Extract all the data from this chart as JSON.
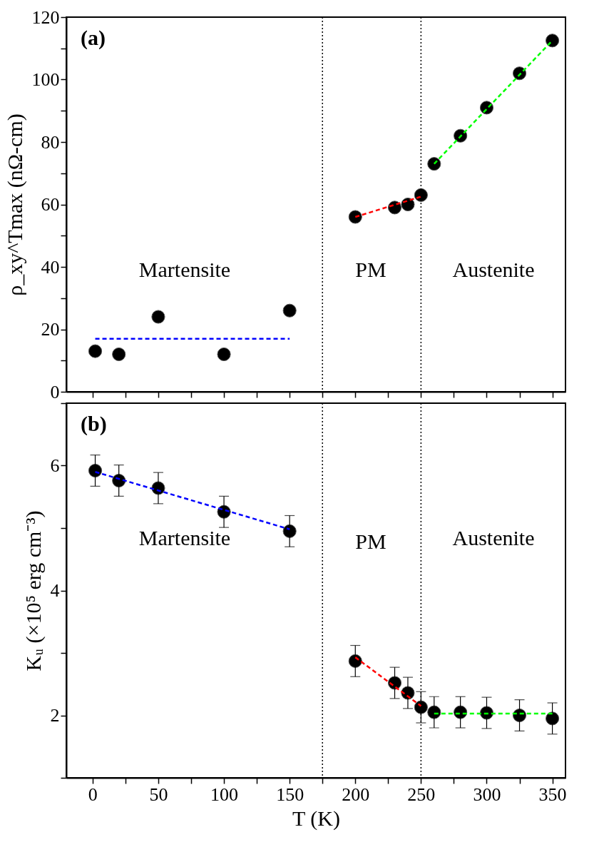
{
  "chart_data": [
    {
      "type": "scatter",
      "ylabel": "ρ_xy^Tmax (nΩ-cm)",
      "xlim": [
        -20,
        360
      ],
      "ylim": [
        0,
        120
      ],
      "xticks": [
        0,
        {
          "value": 25,
          "label": null
        },
        50,
        {
          "value": 75,
          "label": null
        },
        100,
        {
          "value": 125,
          "label": null
        },
        150,
        {
          "value": 175,
          "label": null
        },
        200,
        {
          "value": 225,
          "label": null
        },
        250,
        {
          "value": 275,
          "label": null
        },
        300,
        {
          "value": 325,
          "label": null
        },
        350
      ],
      "yticks": [
        0,
        {
          "value": 10,
          "label": null
        },
        20,
        {
          "value": 30,
          "label": null
        },
        40,
        {
          "value": 50,
          "label": null
        },
        60,
        {
          "value": 70,
          "label": null
        },
        80,
        {
          "value": 90,
          "label": null
        },
        100,
        {
          "value": 110,
          "label": null
        },
        120
      ],
      "tick_labels": "y",
      "line_style": "dashed",
      "annotations": [
        "(a)",
        "Martensite",
        "PM",
        "Austenite"
      ],
      "ref_lines": [
        {
          "axis": "x",
          "value": 175,
          "color": "#000000",
          "line_style": "dotted"
        },
        {
          "axis": "x",
          "value": 250,
          "color": "#000000",
          "line_style": "dotted"
        }
      ],
      "series": [
        {
          "color": "#000000",
          "marker": "circle",
          "x": [
            2,
            20,
            50,
            100,
            150,
            200,
            230,
            240,
            250,
            260,
            280,
            300,
            325,
            350
          ],
          "values": [
            13,
            12,
            24,
            12,
            26,
            56,
            59,
            60,
            63,
            73,
            82,
            91,
            102,
            112.5
          ]
        },
        {
          "type": "line",
          "color": "#0000ff",
          "x": [
            2,
            150
          ],
          "values": [
            17,
            17
          ]
        },
        {
          "type": "line",
          "color": "#ff0000",
          "x": [
            200,
            250
          ],
          "values": [
            56,
            62.5
          ]
        },
        {
          "type": "line",
          "color": "#00ff00",
          "x": [
            260,
            350
          ],
          "values": [
            73,
            112.5
          ]
        }
      ]
    },
    {
      "type": "scatter",
      "xlabel": "T (K)",
      "ylabel": "Kᵤ (×10⁵ erg cm⁻³)",
      "xlim": [
        -20,
        360
      ],
      "ylim": [
        1,
        7
      ],
      "xticks": [
        0,
        {
          "value": 25,
          "label": null
        },
        50,
        {
          "value": 75,
          "label": null
        },
        100,
        {
          "value": 125,
          "label": null
        },
        150,
        {
          "value": 175,
          "label": null
        },
        200,
        {
          "value": 225,
          "label": null
        },
        250,
        {
          "value": 275,
          "label": null
        },
        300,
        {
          "value": 325,
          "label": null
        },
        350
      ],
      "yticks": [
        {
          "value": 1,
          "label": null
        },
        2,
        {
          "value": 3,
          "label": null
        },
        4,
        {
          "value": 5,
          "label": null
        },
        6,
        {
          "value": 7,
          "label": null
        }
      ],
      "line_style": "dashed",
      "annotations": [
        "(b)",
        "Martensite",
        "PM",
        "Austenite"
      ],
      "ref_lines": [
        {
          "axis": "x",
          "value": 175,
          "color": "#000000",
          "line_style": "dotted"
        },
        {
          "axis": "x",
          "value": 250,
          "color": "#000000",
          "line_style": "dotted"
        }
      ],
      "series": [
        {
          "color": "#000000",
          "marker": "circle",
          "x": [
            2,
            20,
            50,
            100,
            150,
            200,
            230,
            240,
            250,
            260,
            280,
            300,
            325,
            350
          ],
          "values": [
            5.92,
            5.76,
            5.64,
            5.26,
            4.95,
            2.87,
            2.52,
            2.36,
            2.13,
            2.05,
            2.05,
            2.04,
            2.0,
            1.95
          ],
          "errors": [
            0.25,
            0.25,
            0.25,
            0.25,
            0.25,
            0.25,
            0.25,
            0.25,
            0.25,
            0.25,
            0.25,
            0.25,
            0.25,
            0.25
          ]
        },
        {
          "type": "line",
          "color": "#0000ff",
          "x": [
            2,
            150
          ],
          "values": [
            5.9,
            4.98
          ]
        },
        {
          "type": "line",
          "color": "#ff0000",
          "x": [
            200,
            250
          ],
          "values": [
            2.93,
            2.15
          ]
        },
        {
          "type": "line",
          "color": "#00ff00",
          "x": [
            260,
            350
          ],
          "values": [
            2.03,
            2.03
          ]
        }
      ]
    }
  ]
}
